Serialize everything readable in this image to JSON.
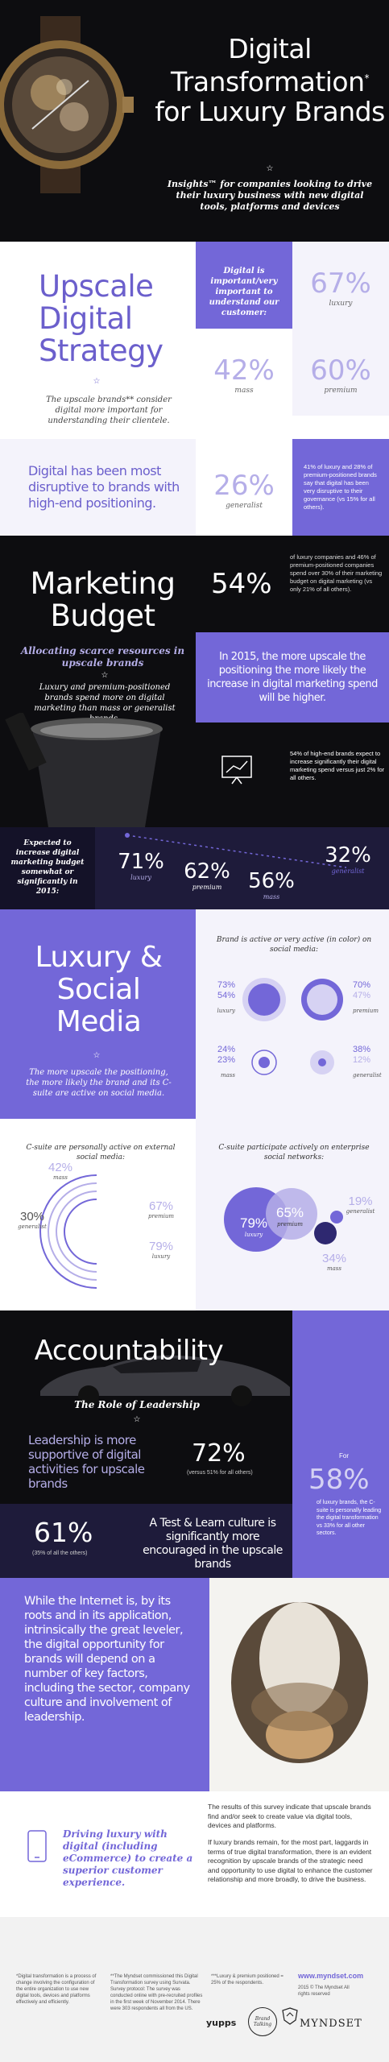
{
  "hero": {
    "title": "Digital Transformation",
    "title_sup": "*",
    "title_2": "for Luxury Brands",
    "star": "☆",
    "subtitle": "Insights™ for companies looking to drive their luxury business with new digital tools, platforms and devices"
  },
  "upscale": {
    "heading": "Upscale Digital Strategy",
    "note": "The upscale brands** consider digital more important for understanding their clientele.",
    "important_label": "Digital is important/very important to understand our customer:",
    "luxury_pct": "67%",
    "luxury_label": "luxury",
    "mass_pct": "42%",
    "mass_label": "mass",
    "premium_pct": "60%",
    "premium_label": "premium",
    "disruptive": "Digital has been most disruptive to brands with high-end positioning.",
    "generalist_pct": "26%",
    "generalist_label": "generalist",
    "gov_note": "41% of luxury and 28% of premium-positioned brands say that digital has been very disruptive to their governance (vs 15% for all others)."
  },
  "marketing": {
    "heading": "Marketing Budget",
    "sub": "Allocating scarce resources in upscale brands",
    "star": "☆",
    "note": "Luxury and premium-positioned brands spend more on digital marketing than mass or generalist brands.",
    "pct54": "54%",
    "pct54_note": "of luxury companies and 46% of premium-positioned companies spend over 30% of their marketing budget on digital marketing (vs only 21% of all others).",
    "statement": "In 2015, the more upscale the positioning the more likely the increase in digital marketing spend will be higher.",
    "growth_note": "54% of high-end brands expect to increase significantly their digital marketing spend versus just 2% for all others.",
    "expect_label": "Expected to increase digital marketing budget somewhat or significantly in 2015:",
    "luxury_pct": "71%",
    "luxury_label": "luxury",
    "premium_pct": "62%",
    "premium_label": "premium",
    "mass_pct": "56%",
    "mass_label": "mass",
    "generalist_pct": "32%",
    "generalist_label": "generalist"
  },
  "social": {
    "heading": "Luxury & Social Media",
    "star": "☆",
    "note": "The more upscale the positioning, the more likely the brand and its C-suite are active on social media.",
    "active_label": "Brand is active or very active (in color) on social media:",
    "rows": [
      {
        "a": "73%",
        "b": "54%",
        "lbl": "luxury",
        "c": "70%",
        "d": "47%",
        "lbl2": "premium"
      },
      {
        "a": "24%",
        "b": "23%",
        "lbl": "mass",
        "c": "38%",
        "d": "12%",
        "lbl2": "generalist"
      }
    ],
    "csuite_label": "C-suite are personally active on external social media:",
    "cs_mass": "42%",
    "cs_mass_label": "mass",
    "cs_gen": "30%",
    "cs_gen_label": "generalist",
    "cs_prem": "67%",
    "cs_prem_label": "premium",
    "cs_lux": "79%",
    "cs_lux_label": "luxury",
    "enterprise_label": "C-suite participate actively on enterprise social networks:",
    "en_lux": "79%",
    "en_lux_label": "luxury",
    "en_prem": "65%",
    "en_prem_label": "premium",
    "en_gen": "19%",
    "en_gen_label": "generalist",
    "en_mass": "34%",
    "en_mass_label": "mass"
  },
  "account": {
    "heading": "Accountability",
    "sub": "The Role of Leadership",
    "star": "☆",
    "support": "Leadership is more supportive of digital activities for upscale brands",
    "pct72": "72%",
    "pct72_note": "(versus 51% for all others)",
    "for_label": "For",
    "pct58": "58%",
    "pct58_note": "of luxury brands, the C-suite is personally leading the digital transformation vs 33% for all other sectors.",
    "pct61": "61%",
    "pct61_note": "(35% of all the others)",
    "testlearn": "A Test & Learn culture is significantly more encouraged in the upscale brands"
  },
  "closing": {
    "text": "While the Internet is, by its roots and in its application, intrinsically the great leveler, the digital opportunity for brands will depend on a number of key factors, including the sector, company culture and involvement of leadership.",
    "drive": "Driving luxury with digital (including eCommerce) to create a superior customer experience.",
    "results": "The results of this survey indicate that upscale brands find and/or seek to create value via digital tools, devices and platforms.",
    "results2": "If luxury brands remain, for the most part, laggards in terms of true digital transformation, there is an evident recognition by upscale brands of the strategic need and opportunity to use digital to enhance the customer relationship and more broadly, to drive the business."
  },
  "footer": {
    "f1": "*Digital transformation is a process of change involving the configuration of the entire organization to use new digital tools, devices and platforms effectively and efficiently.",
    "f2": "**The Myndset commissioned this Digital Transformation survey using Survata. Survey protocol: The survey was conducted online with pre-recruited profiles in the first week of November 2014. There were 303 respondents all from the US.",
    "f3": "***Luxury & premium positioned = 25% of the respondents.",
    "url": "www.myndset.com",
    "copyright": "2015 © The Myndset All rights reserved",
    "logo1": "yupps",
    "logo2": "Brand Talking",
    "brand": "MYNDSET"
  }
}
